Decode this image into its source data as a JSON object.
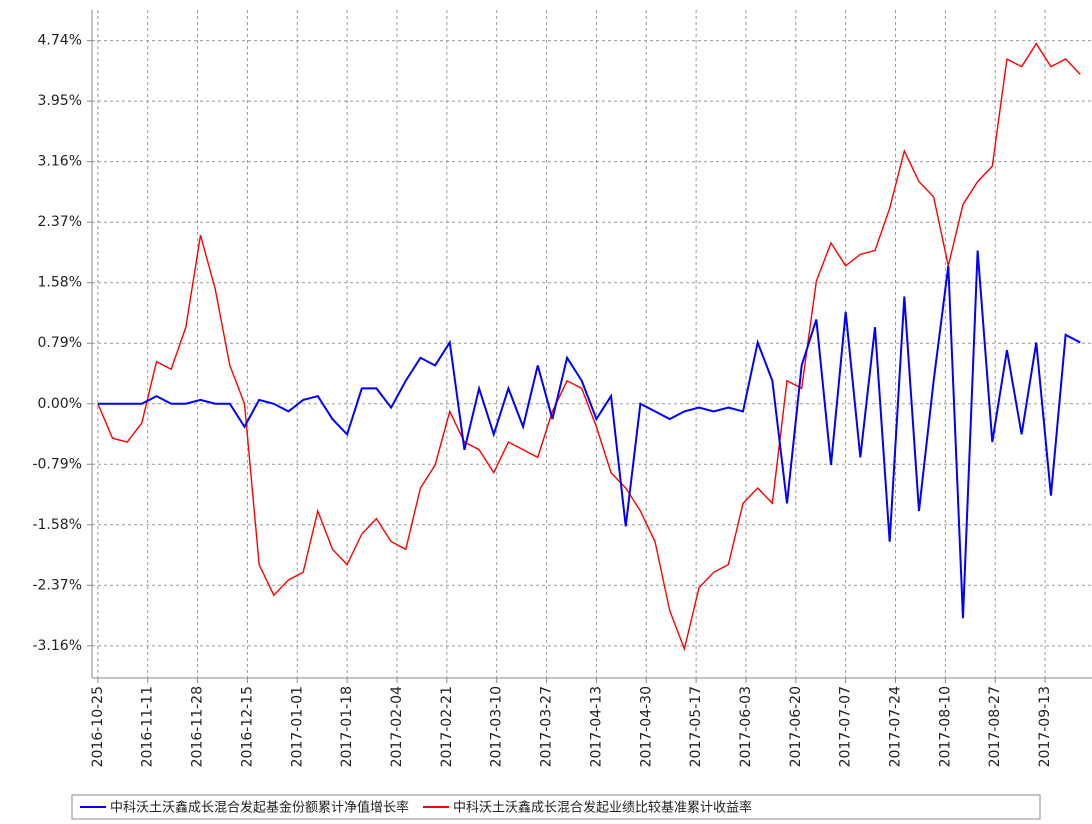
{
  "chart_data": {
    "type": "line",
    "x": [
      "2016-10-25",
      "2016-10-30",
      "2016-11-04",
      "2016-11-09",
      "2016-11-14",
      "2016-11-19",
      "2016-11-24",
      "2016-11-29",
      "2016-12-04",
      "2016-12-09",
      "2016-12-14",
      "2016-12-19",
      "2016-12-24",
      "2016-12-29",
      "2017-01-03",
      "2017-01-08",
      "2017-01-13",
      "2017-01-18",
      "2017-01-23",
      "2017-01-28",
      "2017-02-02",
      "2017-02-07",
      "2017-02-12",
      "2017-02-17",
      "2017-02-22",
      "2017-02-27",
      "2017-03-04",
      "2017-03-09",
      "2017-03-14",
      "2017-03-19",
      "2017-03-24",
      "2017-03-29",
      "2017-04-03",
      "2017-04-08",
      "2017-04-13",
      "2017-04-18",
      "2017-04-23",
      "2017-04-28",
      "2017-05-03",
      "2017-05-08",
      "2017-05-13",
      "2017-05-18",
      "2017-05-23",
      "2017-05-28",
      "2017-06-02",
      "2017-06-07",
      "2017-06-12",
      "2017-06-17",
      "2017-06-22",
      "2017-06-27",
      "2017-07-02",
      "2017-07-07",
      "2017-07-12",
      "2017-07-17",
      "2017-07-22",
      "2017-07-27",
      "2017-08-01",
      "2017-08-06",
      "2017-08-11",
      "2017-08-16",
      "2017-08-21",
      "2017-08-26",
      "2017-08-31",
      "2017-09-05",
      "2017-09-10",
      "2017-09-15",
      "2017-09-20",
      "2017-09-25"
    ],
    "series": [
      {
        "name": "中科沃土沃鑫成长混合发起基金份额累计净值增长率",
        "color": "#0000ff",
        "values": [
          0,
          0,
          0,
          0,
          0.1,
          0.0,
          0.0,
          0.05,
          0.0,
          0.0,
          -0.3,
          0.05,
          0.0,
          -0.1,
          0.05,
          0.1,
          -0.2,
          -0.4,
          0.2,
          0.2,
          -0.05,
          0.3,
          0.6,
          0.5,
          0.8,
          -0.6,
          0.2,
          -0.4,
          0.2,
          -0.3,
          0.5,
          -0.2,
          0.6,
          0.3,
          -0.2,
          0.1,
          -1.6,
          0.0,
          -0.1,
          -0.2,
          -0.1,
          -0.05,
          -0.1,
          -0.05,
          -0.1,
          0.8,
          0.3,
          -1.3,
          0.5,
          1.1,
          -0.8,
          1.2,
          -0.7,
          1.0,
          -1.8,
          1.4,
          -1.4,
          0.3,
          1.8,
          -2.8,
          2.0,
          -0.5,
          0.7,
          -0.4,
          0.8,
          -1.2,
          0.9,
          0.8
        ]
      },
      {
        "name": "中科沃土沃鑫成长混合发起业绩比较基准累计收益率",
        "color": "#ff0000",
        "values": [
          0.0,
          -0.45,
          -0.5,
          -0.25,
          0.55,
          0.45,
          1.0,
          2.2,
          1.5,
          0.5,
          0.0,
          -2.1,
          -2.5,
          -2.3,
          -2.2,
          -1.4,
          -1.9,
          -2.1,
          -1.7,
          -1.5,
          -1.8,
          -1.9,
          -1.1,
          -0.8,
          -0.1,
          -0.5,
          -0.6,
          -0.9,
          -0.5,
          -0.6,
          -0.7,
          -0.1,
          0.3,
          0.2,
          -0.3,
          -0.9,
          -1.1,
          -1.4,
          -1.8,
          -2.7,
          -3.2,
          -2.4,
          -2.2,
          -2.1,
          -1.3,
          -1.1,
          -1.3,
          0.3,
          0.2,
          1.6,
          2.1,
          1.8,
          1.95,
          2.0,
          2.55,
          3.3,
          2.9,
          2.7,
          1.8,
          2.6,
          2.9,
          3.1,
          4.5,
          4.4,
          4.7,
          4.4,
          4.5,
          4.3
        ]
      }
    ],
    "xlim": [
      "2016-10-23",
      "2017-09-29"
    ],
    "xticks": [
      "2016-10-25",
      "2016-11-11",
      "2016-11-28",
      "2016-12-15",
      "2017-01-01",
      "2017-01-18",
      "2017-02-04",
      "2017-02-21",
      "2017-03-10",
      "2017-03-27",
      "2017-04-13",
      "2017-04-30",
      "2017-05-17",
      "2017-06-03",
      "2017-06-20",
      "2017-07-07",
      "2017-07-24",
      "2017-08-10",
      "2017-08-27",
      "2017-09-13"
    ],
    "ylim": [
      -3.58,
      5.14
    ],
    "yticks": [
      {
        "value": -3.16,
        "label": "-3.16%"
      },
      {
        "value": -2.37,
        "label": "-2.37%"
      },
      {
        "value": -1.58,
        "label": "-1.58%"
      },
      {
        "value": -0.79,
        "label": "-0.79%"
      },
      {
        "value": 0,
        "label": "0.00%"
      },
      {
        "value": 0.79,
        "label": "0.79%"
      },
      {
        "value": 1.58,
        "label": "1.58%"
      },
      {
        "value": 2.37,
        "label": "2.37%"
      },
      {
        "value": 3.16,
        "label": "3.16%"
      },
      {
        "value": 3.95,
        "label": "3.95%"
      },
      {
        "value": 4.74,
        "label": "4.74%"
      }
    ],
    "grid": true
  }
}
